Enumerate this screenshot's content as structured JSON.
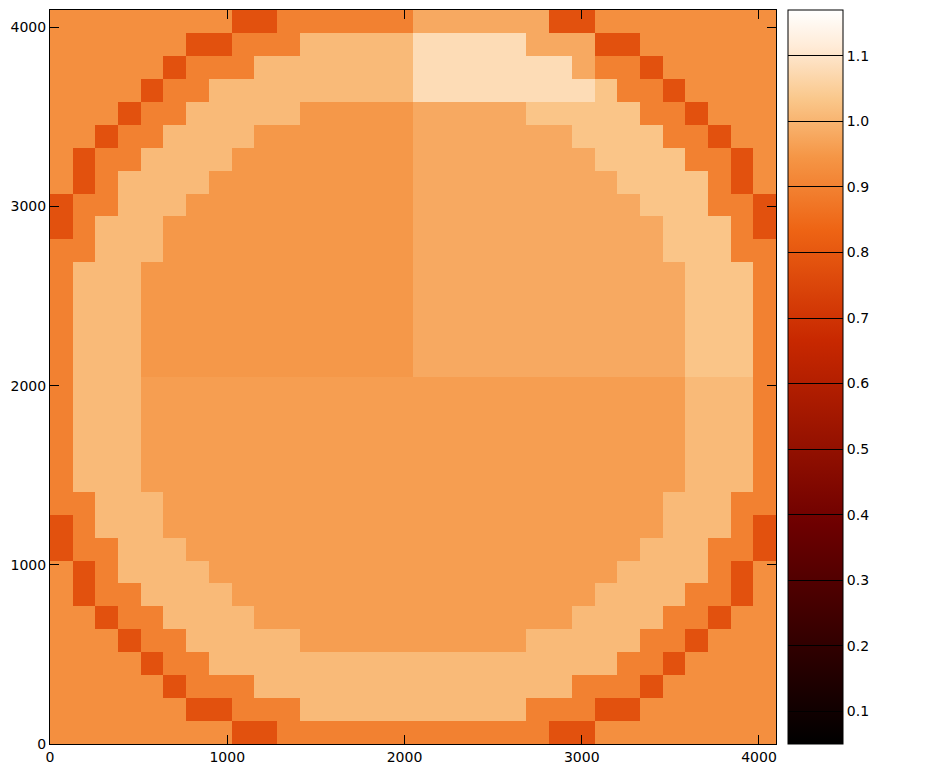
{
  "chart_data": {
    "type": "heatmap",
    "grid": false,
    "xlim": [
      0,
      4096
    ],
    "xticks": [
      0,
      1000,
      2000,
      3000,
      4000
    ],
    "ylim": [
      0,
      4096
    ],
    "yticks": [
      0,
      1000,
      2000,
      3000,
      4000
    ],
    "zlim": [
      0.05,
      1.17
    ],
    "zticks": [
      0.1,
      0.2,
      0.3,
      0.4,
      0.5,
      0.6,
      0.7,
      0.8,
      0.9,
      {
        "value": 1,
        "label": "1.0"
      },
      1.1
    ],
    "x": [
      64,
      192,
      320,
      448,
      576,
      704,
      832,
      960,
      1088,
      1216,
      1344,
      1472,
      1600,
      1728,
      1856,
      1984,
      2112,
      2240,
      2368,
      2496,
      2624,
      2752,
      2880,
      3008,
      3136,
      3264,
      3392,
      3520,
      3648,
      3776,
      3904,
      4032
    ],
    "y": [
      64,
      192,
      320,
      448,
      576,
      704,
      832,
      960,
      1088,
      1216,
      1344,
      1472,
      1600,
      1728,
      1856,
      1984,
      2112,
      2240,
      2368,
      2496,
      2624,
      2752,
      2880,
      3008,
      3136,
      3264,
      3392,
      3520,
      3648,
      3776,
      3904,
      4032
    ],
    "z": [
      [
        0.93,
        0.93,
        0.93,
        0.93,
        0.93,
        0.93,
        0.93,
        0.93,
        0.78,
        0.78,
        0.9,
        0.9,
        0.9,
        0.9,
        0.9,
        0.9,
        0.9,
        0.9,
        0.9,
        0.9,
        0.9,
        0.9,
        0.78,
        0.78,
        0.93,
        0.93,
        0.93,
        0.93,
        0.93,
        0.93,
        0.93,
        0.93
      ],
      [
        0.93,
        0.93,
        0.93,
        0.93,
        0.93,
        0.93,
        0.78,
        0.78,
        0.9,
        0.9,
        0.9,
        1.01,
        1.01,
        1.01,
        1.01,
        1.01,
        1.01,
        1.01,
        1.01,
        1.01,
        1.01,
        0.9,
        0.9,
        0.9,
        0.78,
        0.78,
        0.93,
        0.93,
        0.93,
        0.93,
        0.93,
        0.93
      ],
      [
        0.93,
        0.93,
        0.93,
        0.93,
        0.93,
        0.78,
        0.9,
        0.9,
        0.9,
        1.01,
        1.01,
        1.01,
        1.01,
        1.01,
        1.01,
        1.01,
        1.01,
        1.01,
        1.01,
        1.01,
        1.01,
        1.01,
        1.01,
        0.9,
        0.9,
        0.9,
        0.78,
        0.93,
        0.93,
        0.93,
        0.93,
        0.93
      ],
      [
        0.93,
        0.93,
        0.93,
        0.93,
        0.78,
        0.9,
        0.9,
        1.01,
        1.01,
        1.01,
        1.01,
        1.01,
        1.01,
        1.01,
        1.01,
        1.01,
        1.01,
        1.01,
        1.01,
        1.01,
        1.01,
        1.01,
        1.01,
        1.01,
        1.01,
        0.9,
        0.9,
        0.78,
        0.93,
        0.93,
        0.93,
        0.93
      ],
      [
        0.93,
        0.93,
        0.93,
        0.78,
        0.9,
        0.9,
        1.01,
        1.01,
        1.01,
        1.01,
        1.01,
        0.96,
        0.96,
        0.96,
        0.96,
        0.96,
        0.96,
        0.96,
        0.96,
        0.96,
        0.96,
        1.01,
        1.01,
        1.01,
        1.01,
        1.01,
        0.9,
        0.9,
        0.78,
        0.93,
        0.93,
        0.93
      ],
      [
        0.93,
        0.93,
        0.78,
        0.9,
        0.9,
        1.01,
        1.01,
        1.01,
        1.01,
        0.96,
        0.96,
        0.96,
        0.96,
        0.96,
        0.96,
        0.96,
        0.96,
        0.96,
        0.96,
        0.96,
        0.96,
        0.96,
        0.96,
        1.01,
        1.01,
        1.01,
        1.01,
        0.9,
        0.9,
        0.78,
        0.93,
        0.93
      ],
      [
        0.93,
        0.78,
        0.9,
        0.9,
        1.01,
        1.01,
        1.01,
        1.01,
        0.96,
        0.96,
        0.96,
        0.96,
        0.96,
        0.96,
        0.96,
        0.96,
        0.96,
        0.96,
        0.96,
        0.96,
        0.96,
        0.96,
        0.96,
        0.96,
        1.01,
        1.01,
        1.01,
        1.01,
        0.9,
        0.9,
        0.78,
        0.93
      ],
      [
        0.93,
        0.78,
        0.9,
        1.01,
        1.01,
        1.01,
        1.01,
        0.96,
        0.96,
        0.96,
        0.96,
        0.96,
        0.96,
        0.96,
        0.96,
        0.96,
        0.96,
        0.96,
        0.96,
        0.96,
        0.96,
        0.96,
        0.96,
        0.96,
        0.96,
        1.01,
        1.01,
        1.01,
        1.01,
        0.9,
        0.78,
        0.93
      ],
      [
        0.78,
        0.9,
        0.9,
        1.01,
        1.01,
        1.01,
        0.96,
        0.96,
        0.96,
        0.96,
        0.96,
        0.96,
        0.96,
        0.96,
        0.96,
        0.96,
        0.96,
        0.96,
        0.96,
        0.96,
        0.96,
        0.96,
        0.96,
        0.96,
        0.96,
        0.96,
        1.01,
        1.01,
        1.01,
        0.9,
        0.9,
        0.78
      ],
      [
        0.78,
        0.9,
        1.01,
        1.01,
        1.01,
        0.96,
        0.96,
        0.96,
        0.96,
        0.96,
        0.96,
        0.96,
        0.96,
        0.96,
        0.96,
        0.96,
        0.96,
        0.96,
        0.96,
        0.96,
        0.96,
        0.96,
        0.96,
        0.96,
        0.96,
        0.96,
        0.96,
        1.01,
        1.01,
        1.01,
        0.9,
        0.78
      ],
      [
        0.9,
        0.9,
        1.01,
        1.01,
        1.01,
        0.96,
        0.96,
        0.96,
        0.96,
        0.96,
        0.96,
        0.96,
        0.96,
        0.96,
        0.96,
        0.96,
        0.96,
        0.96,
        0.96,
        0.96,
        0.96,
        0.96,
        0.96,
        0.96,
        0.96,
        0.96,
        0.96,
        1.01,
        1.01,
        1.01,
        0.9,
        0.9
      ],
      [
        0.9,
        1.01,
        1.01,
        1.01,
        0.96,
        0.96,
        0.96,
        0.96,
        0.96,
        0.96,
        0.96,
        0.96,
        0.96,
        0.96,
        0.96,
        0.96,
        0.96,
        0.96,
        0.96,
        0.96,
        0.96,
        0.96,
        0.96,
        0.96,
        0.96,
        0.96,
        0.96,
        0.96,
        1.01,
        1.01,
        1.01,
        0.9
      ],
      [
        0.9,
        1.01,
        1.01,
        1.01,
        0.96,
        0.96,
        0.96,
        0.96,
        0.96,
        0.96,
        0.96,
        0.96,
        0.96,
        0.96,
        0.96,
        0.96,
        0.96,
        0.96,
        0.96,
        0.96,
        0.96,
        0.96,
        0.96,
        0.96,
        0.96,
        0.96,
        0.96,
        0.96,
        1.01,
        1.01,
        1.01,
        0.9
      ],
      [
        0.9,
        1.01,
        1.01,
        1.01,
        0.96,
        0.96,
        0.96,
        0.96,
        0.96,
        0.96,
        0.96,
        0.96,
        0.96,
        0.96,
        0.96,
        0.96,
        0.96,
        0.96,
        0.96,
        0.96,
        0.96,
        0.96,
        0.96,
        0.96,
        0.96,
        0.96,
        0.96,
        0.96,
        1.01,
        1.01,
        1.01,
        0.9
      ],
      [
        0.9,
        1.01,
        1.01,
        1.01,
        0.96,
        0.96,
        0.96,
        0.96,
        0.96,
        0.96,
        0.96,
        0.96,
        0.96,
        0.96,
        0.96,
        0.96,
        0.96,
        0.96,
        0.96,
        0.96,
        0.96,
        0.96,
        0.96,
        0.96,
        0.96,
        0.96,
        0.96,
        0.96,
        1.01,
        1.01,
        1.01,
        0.9
      ],
      [
        0.9,
        1.01,
        1.01,
        1.01,
        0.96,
        0.96,
        0.96,
        0.96,
        0.96,
        0.96,
        0.96,
        0.96,
        0.96,
        0.96,
        0.96,
        0.96,
        0.96,
        0.96,
        0.96,
        0.96,
        0.96,
        0.96,
        0.96,
        0.96,
        0.96,
        0.96,
        0.96,
        0.96,
        1.01,
        1.01,
        1.01,
        0.9
      ],
      [
        0.9,
        1.01,
        1.01,
        1.01,
        0.95,
        0.95,
        0.95,
        0.95,
        0.95,
        0.95,
        0.95,
        0.95,
        0.95,
        0.95,
        0.95,
        0.95,
        0.98,
        0.98,
        0.98,
        0.98,
        0.98,
        0.98,
        0.98,
        0.98,
        0.98,
        0.98,
        0.98,
        0.98,
        1.03,
        1.03,
        1.03,
        0.9
      ],
      [
        0.9,
        1.01,
        1.01,
        1.01,
        0.95,
        0.95,
        0.95,
        0.95,
        0.95,
        0.95,
        0.95,
        0.95,
        0.95,
        0.95,
        0.95,
        0.95,
        0.98,
        0.98,
        0.98,
        0.98,
        0.98,
        0.98,
        0.98,
        0.98,
        0.98,
        0.98,
        0.98,
        0.98,
        1.03,
        1.03,
        1.03,
        0.9
      ],
      [
        0.9,
        1.01,
        1.01,
        1.01,
        0.95,
        0.95,
        0.95,
        0.95,
        0.95,
        0.95,
        0.95,
        0.95,
        0.95,
        0.95,
        0.95,
        0.95,
        0.98,
        0.98,
        0.98,
        0.98,
        0.98,
        0.98,
        0.98,
        0.98,
        0.98,
        0.98,
        0.98,
        0.98,
        1.03,
        1.03,
        1.03,
        0.9
      ],
      [
        0.9,
        1.01,
        1.01,
        1.01,
        0.95,
        0.95,
        0.95,
        0.95,
        0.95,
        0.95,
        0.95,
        0.95,
        0.95,
        0.95,
        0.95,
        0.95,
        0.98,
        0.98,
        0.98,
        0.98,
        0.98,
        0.98,
        0.98,
        0.98,
        0.98,
        0.98,
        0.98,
        0.98,
        1.03,
        1.03,
        1.03,
        0.9
      ],
      [
        0.9,
        1.01,
        1.01,
        1.01,
        0.95,
        0.95,
        0.95,
        0.95,
        0.95,
        0.95,
        0.95,
        0.95,
        0.95,
        0.95,
        0.95,
        0.95,
        0.98,
        0.98,
        0.98,
        0.98,
        0.98,
        0.98,
        0.98,
        0.98,
        0.98,
        0.98,
        0.98,
        0.98,
        1.03,
        1.03,
        1.03,
        0.9
      ],
      [
        0.9,
        0.9,
        1.01,
        1.01,
        1.01,
        0.95,
        0.95,
        0.95,
        0.95,
        0.95,
        0.95,
        0.95,
        0.95,
        0.95,
        0.95,
        0.95,
        0.98,
        0.98,
        0.98,
        0.98,
        0.98,
        0.98,
        0.98,
        0.98,
        0.98,
        0.98,
        0.98,
        1.03,
        1.03,
        1.03,
        0.9,
        0.9
      ],
      [
        0.78,
        0.9,
        1.01,
        1.01,
        1.01,
        0.95,
        0.95,
        0.95,
        0.95,
        0.95,
        0.95,
        0.95,
        0.95,
        0.95,
        0.95,
        0.95,
        0.98,
        0.98,
        0.98,
        0.98,
        0.98,
        0.98,
        0.98,
        0.98,
        0.98,
        0.98,
        0.98,
        1.03,
        1.03,
        1.03,
        0.9,
        0.78
      ],
      [
        0.78,
        0.9,
        0.9,
        1.01,
        1.01,
        1.01,
        0.95,
        0.95,
        0.95,
        0.95,
        0.95,
        0.95,
        0.95,
        0.95,
        0.95,
        0.95,
        0.98,
        0.98,
        0.98,
        0.98,
        0.98,
        0.98,
        0.98,
        0.98,
        0.98,
        0.98,
        1.03,
        1.03,
        1.03,
        0.9,
        0.9,
        0.78
      ],
      [
        0.93,
        0.78,
        0.9,
        1.01,
        1.01,
        1.01,
        1.01,
        0.95,
        0.95,
        0.95,
        0.95,
        0.95,
        0.95,
        0.95,
        0.95,
        0.95,
        0.98,
        0.98,
        0.98,
        0.98,
        0.98,
        0.98,
        0.98,
        0.98,
        0.98,
        1.03,
        1.03,
        1.03,
        1.03,
        0.9,
        0.78,
        0.93
      ],
      [
        0.93,
        0.78,
        0.9,
        0.9,
        1.01,
        1.01,
        1.01,
        1.01,
        0.95,
        0.95,
        0.95,
        0.95,
        0.95,
        0.95,
        0.95,
        0.95,
        0.98,
        0.98,
        0.98,
        0.98,
        0.98,
        0.98,
        0.98,
        0.98,
        1.03,
        1.03,
        1.03,
        1.03,
        0.9,
        0.9,
        0.78,
        0.93
      ],
      [
        0.93,
        0.93,
        0.78,
        0.9,
        0.9,
        1.01,
        1.01,
        1.01,
        1.01,
        0.95,
        0.95,
        0.95,
        0.95,
        0.95,
        0.95,
        0.95,
        0.98,
        0.98,
        0.98,
        0.98,
        0.98,
        0.98,
        0.98,
        1.03,
        1.03,
        1.03,
        1.03,
        0.9,
        0.9,
        0.78,
        0.93,
        0.93
      ],
      [
        0.93,
        0.93,
        0.93,
        0.78,
        0.9,
        0.9,
        1.01,
        1.01,
        1.01,
        1.01,
        1.01,
        0.95,
        0.95,
        0.95,
        0.95,
        0.95,
        0.98,
        0.98,
        0.98,
        0.98,
        0.98,
        1.03,
        1.03,
        1.03,
        1.03,
        1.03,
        0.9,
        0.9,
        0.78,
        0.93,
        0.93,
        0.93
      ],
      [
        0.93,
        0.93,
        0.93,
        0.93,
        0.78,
        0.9,
        0.9,
        1.01,
        1.01,
        1.01,
        1.01,
        1.01,
        1.01,
        1.01,
        1.01,
        1.01,
        1.08,
        1.08,
        1.08,
        1.08,
        1.08,
        1.08,
        1.08,
        1.08,
        1.03,
        0.9,
        0.9,
        0.78,
        0.93,
        0.93,
        0.93,
        0.93
      ],
      [
        0.93,
        0.93,
        0.93,
        0.93,
        0.93,
        0.78,
        0.9,
        0.9,
        0.9,
        1.01,
        1.01,
        1.01,
        1.01,
        1.01,
        1.01,
        1.01,
        1.08,
        1.08,
        1.08,
        1.08,
        1.08,
        1.08,
        1.08,
        0.98,
        0.9,
        0.9,
        0.78,
        0.93,
        0.93,
        0.93,
        0.93,
        0.93
      ],
      [
        0.93,
        0.93,
        0.93,
        0.93,
        0.93,
        0.93,
        0.78,
        0.78,
        0.9,
        0.9,
        0.9,
        1.01,
        1.01,
        1.01,
        1.01,
        1.01,
        1.08,
        1.08,
        1.08,
        1.08,
        1.08,
        0.98,
        0.98,
        0.98,
        0.78,
        0.78,
        0.93,
        0.93,
        0.93,
        0.93,
        0.93,
        0.93
      ],
      [
        0.93,
        0.93,
        0.93,
        0.93,
        0.93,
        0.93,
        0.93,
        0.93,
        0.78,
        0.78,
        0.9,
        0.9,
        0.9,
        0.9,
        0.9,
        0.9,
        0.98,
        0.98,
        0.98,
        0.98,
        0.98,
        0.98,
        0.78,
        0.78,
        0.93,
        0.93,
        0.93,
        0.93,
        0.93,
        0.93,
        0.93,
        0.93
      ]
    ]
  }
}
